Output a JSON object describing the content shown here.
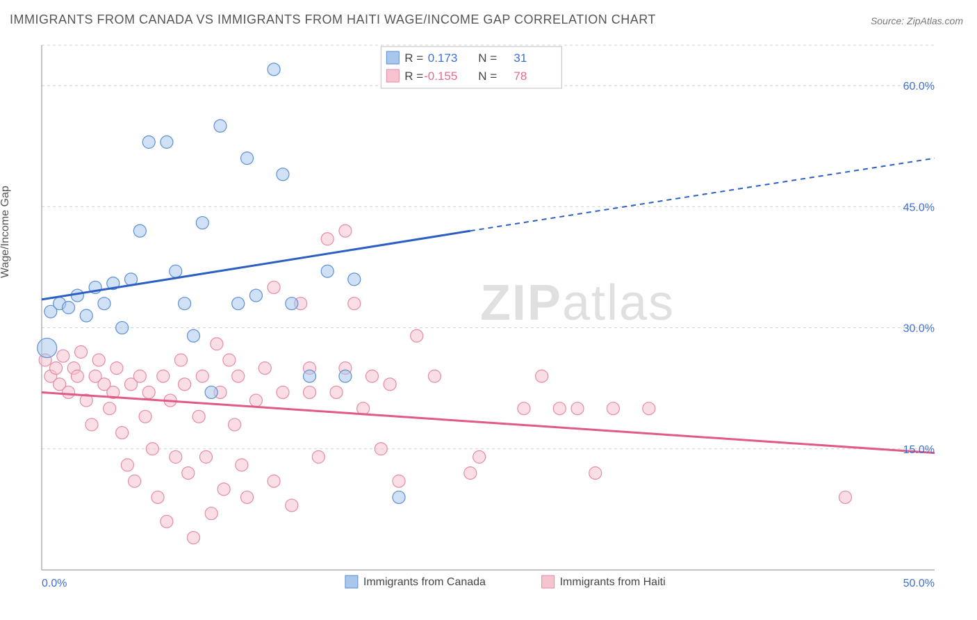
{
  "title": "IMMIGRANTS FROM CANADA VS IMMIGRANTS FROM HAITI WAGE/INCOME GAP CORRELATION CHART",
  "source_label": "Source: ZipAtlas.com",
  "ylabel": "Wage/Income Gap",
  "watermark_zip": "ZIP",
  "watermark_atlas": "atlas",
  "chart": {
    "type": "scatter",
    "background_color": "#ffffff",
    "grid_color": "#d0d0d0",
    "axis_color": "#888888",
    "xlim": [
      0,
      50
    ],
    "ylim": [
      0,
      65
    ],
    "y_ticks": [
      15,
      30,
      45,
      60
    ],
    "y_tick_labels": [
      "15.0%",
      "30.0%",
      "45.0%",
      "60.0%"
    ],
    "x_ticks": [
      0,
      50
    ],
    "x_tick_labels": [
      "0.0%",
      "50.0%"
    ],
    "marker_radius": 9,
    "marker_radius_large": 14,
    "marker_opacity": 0.55,
    "line_width": 3,
    "series": {
      "canada": {
        "label": "Immigrants from Canada",
        "color_fill": "#a9c6ed",
        "color_stroke": "#5b8fd6",
        "line_color": "#2b5fc2",
        "R_label": "R =",
        "R_value": "0.173",
        "N_label": "N =",
        "N_value": "31",
        "trend": {
          "x1": 0,
          "y1": 33.5,
          "x2": 24,
          "y2": 42,
          "x2_ext": 50,
          "y2_ext": 51
        },
        "points": [
          {
            "x": 0.3,
            "y": 27.5,
            "r": 14
          },
          {
            "x": 0.5,
            "y": 32
          },
          {
            "x": 1,
            "y": 33
          },
          {
            "x": 1.5,
            "y": 32.5
          },
          {
            "x": 2,
            "y": 34
          },
          {
            "x": 2.5,
            "y": 31.5
          },
          {
            "x": 3,
            "y": 35
          },
          {
            "x": 3.5,
            "y": 33
          },
          {
            "x": 4,
            "y": 35.5
          },
          {
            "x": 4.5,
            "y": 30
          },
          {
            "x": 5,
            "y": 36
          },
          {
            "x": 5.5,
            "y": 42
          },
          {
            "x": 6,
            "y": 53
          },
          {
            "x": 7,
            "y": 53
          },
          {
            "x": 7.5,
            "y": 37
          },
          {
            "x": 8,
            "y": 33
          },
          {
            "x": 8.5,
            "y": 29
          },
          {
            "x": 9,
            "y": 43
          },
          {
            "x": 9.5,
            "y": 22
          },
          {
            "x": 10,
            "y": 55
          },
          {
            "x": 11,
            "y": 33
          },
          {
            "x": 11.5,
            "y": 51
          },
          {
            "x": 12,
            "y": 34
          },
          {
            "x": 13,
            "y": 62
          },
          {
            "x": 13.5,
            "y": 49
          },
          {
            "x": 14,
            "y": 33
          },
          {
            "x": 15,
            "y": 24
          },
          {
            "x": 16,
            "y": 37
          },
          {
            "x": 17,
            "y": 24
          },
          {
            "x": 17.5,
            "y": 36
          },
          {
            "x": 20,
            "y": 9
          }
        ]
      },
      "haiti": {
        "label": "Immigrants from Haiti",
        "color_fill": "#f6c3cf",
        "color_stroke": "#e68aa4",
        "line_color": "#e05a84",
        "R_label": "R =",
        "R_value": "-0.155",
        "N_label": "N =",
        "N_value": "78",
        "trend": {
          "x1": 0,
          "y1": 22,
          "x2": 50,
          "y2": 14.5
        },
        "points": [
          {
            "x": 0.2,
            "y": 26
          },
          {
            "x": 0.5,
            "y": 24
          },
          {
            "x": 0.8,
            "y": 25
          },
          {
            "x": 1,
            "y": 23
          },
          {
            "x": 1.2,
            "y": 26.5
          },
          {
            "x": 1.5,
            "y": 22
          },
          {
            "x": 1.8,
            "y": 25
          },
          {
            "x": 2,
            "y": 24
          },
          {
            "x": 2.2,
            "y": 27
          },
          {
            "x": 2.5,
            "y": 21
          },
          {
            "x": 2.8,
            "y": 18
          },
          {
            "x": 3,
            "y": 24
          },
          {
            "x": 3.2,
            "y": 26
          },
          {
            "x": 3.5,
            "y": 23
          },
          {
            "x": 3.8,
            "y": 20
          },
          {
            "x": 4,
            "y": 22
          },
          {
            "x": 4.2,
            "y": 25
          },
          {
            "x": 4.5,
            "y": 17
          },
          {
            "x": 4.8,
            "y": 13
          },
          {
            "x": 5,
            "y": 23
          },
          {
            "x": 5.2,
            "y": 11
          },
          {
            "x": 5.5,
            "y": 24
          },
          {
            "x": 5.8,
            "y": 19
          },
          {
            "x": 6,
            "y": 22
          },
          {
            "x": 6.2,
            "y": 15
          },
          {
            "x": 6.5,
            "y": 9
          },
          {
            "x": 6.8,
            "y": 24
          },
          {
            "x": 7,
            "y": 6
          },
          {
            "x": 7.2,
            "y": 21
          },
          {
            "x": 7.5,
            "y": 14
          },
          {
            "x": 7.8,
            "y": 26
          },
          {
            "x": 8,
            "y": 23
          },
          {
            "x": 8.2,
            "y": 12
          },
          {
            "x": 8.5,
            "y": 4
          },
          {
            "x": 8.8,
            "y": 19
          },
          {
            "x": 9,
            "y": 24
          },
          {
            "x": 9.2,
            "y": 14
          },
          {
            "x": 9.5,
            "y": 7
          },
          {
            "x": 9.8,
            "y": 28
          },
          {
            "x": 10,
            "y": 22
          },
          {
            "x": 10.2,
            "y": 10
          },
          {
            "x": 10.5,
            "y": 26
          },
          {
            "x": 10.8,
            "y": 18
          },
          {
            "x": 11,
            "y": 24
          },
          {
            "x": 11.2,
            "y": 13
          },
          {
            "x": 11.5,
            "y": 9
          },
          {
            "x": 12,
            "y": 21
          },
          {
            "x": 12.5,
            "y": 25
          },
          {
            "x": 13,
            "y": 35
          },
          {
            "x": 13,
            "y": 11
          },
          {
            "x": 13.5,
            "y": 22
          },
          {
            "x": 14,
            "y": 8
          },
          {
            "x": 14.5,
            "y": 33
          },
          {
            "x": 15,
            "y": 22
          },
          {
            "x": 15,
            "y": 25
          },
          {
            "x": 15.5,
            "y": 14
          },
          {
            "x": 16,
            "y": 41
          },
          {
            "x": 16.5,
            "y": 22
          },
          {
            "x": 17,
            "y": 42
          },
          {
            "x": 17,
            "y": 25
          },
          {
            "x": 17.5,
            "y": 33
          },
          {
            "x": 18,
            "y": 20
          },
          {
            "x": 18.5,
            "y": 24
          },
          {
            "x": 19,
            "y": 15
          },
          {
            "x": 19.5,
            "y": 23
          },
          {
            "x": 20,
            "y": 11
          },
          {
            "x": 21,
            "y": 29
          },
          {
            "x": 22,
            "y": 24
          },
          {
            "x": 24,
            "y": 12
          },
          {
            "x": 24.5,
            "y": 14
          },
          {
            "x": 27,
            "y": 20
          },
          {
            "x": 28,
            "y": 24
          },
          {
            "x": 29,
            "y": 20
          },
          {
            "x": 30,
            "y": 20
          },
          {
            "x": 31,
            "y": 12
          },
          {
            "x": 32,
            "y": 20
          },
          {
            "x": 34,
            "y": 20
          },
          {
            "x": 45,
            "y": 9
          }
        ]
      }
    },
    "legend_top": {
      "box_fill": "#ffffff",
      "box_stroke": "#bfbfbf"
    }
  }
}
